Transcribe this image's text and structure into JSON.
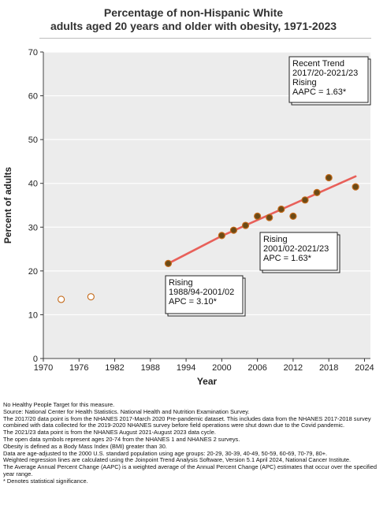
{
  "title_line1": "Percentage of non-Hispanic White",
  "title_line2": "adults aged 20 years and older with obesity, 1971-2023",
  "chart_data": {
    "type": "scatter",
    "xlabel": "Year",
    "ylabel": "Percent of adults",
    "xlim": [
      1970,
      2025
    ],
    "ylim": [
      0,
      70
    ],
    "x_ticks": [
      "1970",
      "1976",
      "1982",
      "1988",
      "1994",
      "2000",
      "2006",
      "2012",
      "2018",
      "2024"
    ],
    "y_ticks": [
      "0",
      "10",
      "20",
      "30",
      "40",
      "50",
      "60",
      "70"
    ],
    "x_tick_values": [
      1970,
      1976,
      1982,
      1988,
      1994,
      2000,
      2006,
      2012,
      2018,
      2024
    ],
    "y_tick_values": [
      0,
      10,
      20,
      30,
      40,
      50,
      60,
      70
    ],
    "grid": "horizontal",
    "background_color": "#ececec",
    "series": [
      {
        "points": [
          {
            "x": 1973,
            "y": 13.5
          },
          {
            "x": 1978,
            "y": 14.1
          }
        ],
        "marker": "open-circle",
        "color": "#c46a1a"
      },
      {
        "points": [
          {
            "x": 1991,
            "y": 21.7
          },
          {
            "x": 2000,
            "y": 28.1
          },
          {
            "x": 2002,
            "y": 29.3
          },
          {
            "x": 2004,
            "y": 30.4
          },
          {
            "x": 2006,
            "y": 32.5
          },
          {
            "x": 2008,
            "y": 32.2
          },
          {
            "x": 2010,
            "y": 34.1
          },
          {
            "x": 2012,
            "y": 32.5
          },
          {
            "x": 2014,
            "y": 36.2
          },
          {
            "x": 2016,
            "y": 37.9
          },
          {
            "x": 2018,
            "y": 41.3
          },
          {
            "x": 2022.5,
            "y": 39.2
          }
        ],
        "marker": "filled-circle",
        "color": "#6b4a16",
        "edge_color": "#c46a1a"
      }
    ],
    "trend_lines": [
      {
        "x": [
          1991,
          2000
        ],
        "y": [
          21.7,
          28.0
        ],
        "color": "#e8605a"
      },
      {
        "x": [
          2000,
          2022.5
        ],
        "y": [
          28.0,
          41.6
        ],
        "color": "#e8605a"
      }
    ],
    "annotations": [
      {
        "lines": [
          "Rising",
          "1988/94-2001/02",
          "APC =  3.10*"
        ]
      },
      {
        "lines": [
          "Rising",
          "2001/02-2021/23",
          "APC =  1.63*"
        ]
      },
      {
        "lines": [
          "Recent Trend",
          "2017/20-2021/23",
          "Rising",
          "AAPC =  1.63*"
        ]
      }
    ]
  },
  "notes": [
    "No Healthy People Target for this measure.",
    "Source: National Center for Health Statistics. National Health and Nutrition Examination Survey.",
    "The 2017/20 data point is from the NHANES 2017-March 2020 Pre-pandemic dataset. This includes data from the NHANES 2017-2018 survey combined with data collected for the 2019-2020 NHANES survey before field operations were shut down due to the Covid pandemic.",
    "The 2021/23 data point is from the NHANES August 2021-August 2023 data cycle.",
    "The open data symbols represent ages 20-74 from the NHANES 1 and NHANES 2 surveys.",
    "Obesity is defined as a Body Mass Index (BMI) greater than 30.",
    "Data are age-adjusted to the 2000 U.S. standard population using age groups: 20-29, 30-39, 40-49, 50-59, 60-69, 70-79, 80+.",
    "Weighted regression lines are calculated using the Joinpoint Trend Analysis Software, Version 5.1 April 2024, National Cancer Institute.",
    "The Average Annual Percent Change (AAPC) is a weighted average of the Annual Percent Change (APC) estimates that occur over the specified year range.",
    "* Denotes statistical significance."
  ]
}
